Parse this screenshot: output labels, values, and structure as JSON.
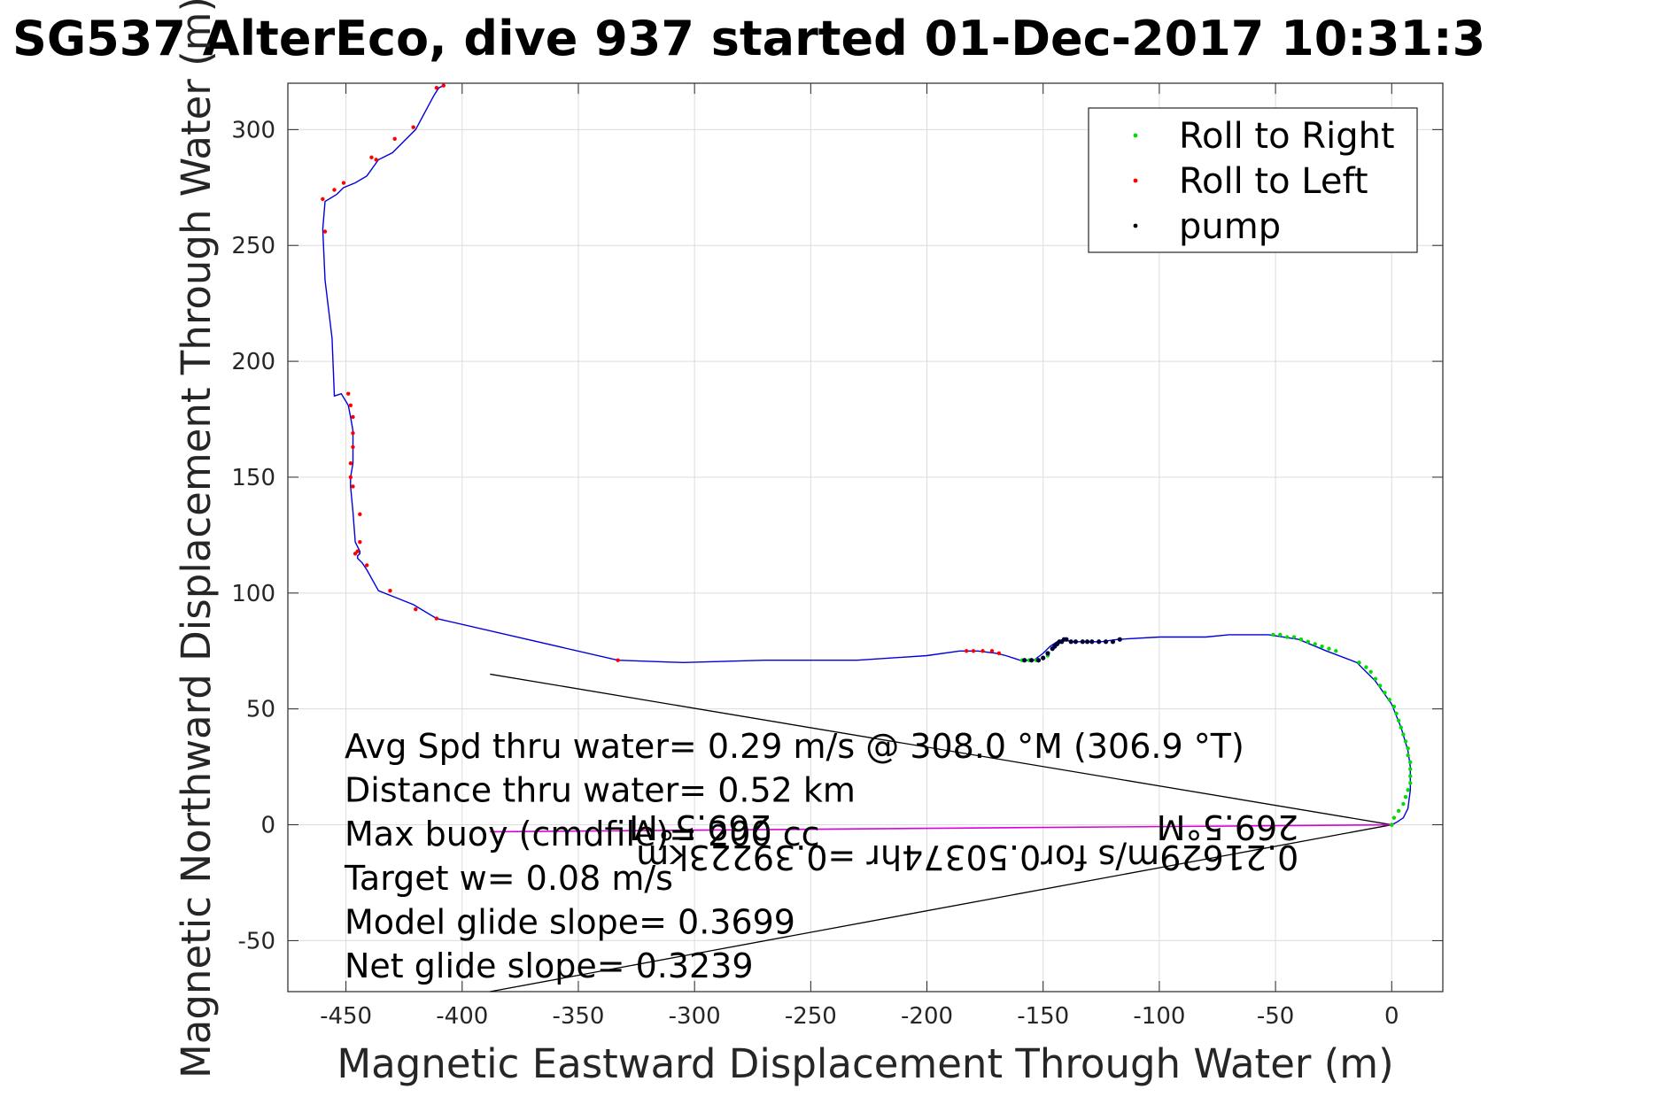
{
  "chart_data": {
    "type": "line",
    "title": "SG537 AlterEco, dive 937 started 01-Dec-2017 10:31:3",
    "xlabel": "Magnetic Eastward Displacement Through Water (m)",
    "ylabel": "Magnetic Northward Displacement Through Water (m)",
    "xlim": [
      -475,
      22
    ],
    "ylim": [
      -72,
      320
    ],
    "xticks": [
      -450,
      -400,
      -350,
      -300,
      -250,
      -200,
      -150,
      -100,
      -50,
      0
    ],
    "yticks": [
      -50,
      0,
      50,
      100,
      150,
      200,
      250,
      300
    ],
    "grid": true,
    "legend_position": "top-right",
    "legend": [
      {
        "label": "Roll to Right",
        "color": "#00dd00"
      },
      {
        "label": "Roll to Left",
        "color": "#ff0000"
      },
      {
        "label": "pump",
        "color": "#000000"
      }
    ],
    "track": {
      "color": "#0000dd",
      "x": [
        -408,
        -410,
        -412,
        -420,
        -425,
        -430,
        -436,
        -441,
        -446,
        -451,
        -454,
        -459,
        -460,
        -459,
        -456,
        -455,
        -452,
        -449,
        -448,
        -447,
        -447,
        -447,
        -448,
        -448,
        -447,
        -446,
        -444,
        -444,
        -445,
        -445,
        -443,
        -441,
        -436,
        -431,
        -421,
        -411,
        -333,
        -305,
        -270,
        -230,
        -200,
        -186,
        -178,
        -170,
        -166,
        -160,
        -154,
        -150,
        -147,
        -144,
        -141,
        -138,
        -133,
        -125,
        -118,
        -100,
        -80,
        -70,
        -53,
        -40,
        -28,
        -15,
        -7,
        0,
        4,
        7,
        8,
        8,
        7,
        5,
        2,
        0
      ],
      "y": [
        319,
        318,
        315,
        300,
        295,
        290,
        287,
        280,
        277,
        275,
        272,
        269,
        257,
        235,
        210,
        185,
        186,
        181,
        176,
        170,
        160,
        156,
        150,
        146,
        135,
        122,
        118,
        117,
        116,
        115,
        113,
        110,
        101,
        99,
        95,
        89,
        71,
        70,
        71,
        71,
        73,
        75,
        75,
        74,
        73,
        71,
        71,
        74,
        77,
        79,
        80,
        79,
        79,
        79,
        80,
        81,
        81,
        82,
        82,
        80,
        75,
        70,
        62,
        52,
        42,
        32,
        25,
        15,
        7,
        3,
        1,
        0
      ]
    },
    "roll_right": {
      "x": [
        -159,
        -156,
        -153,
        -150,
        -148,
        -51,
        -48,
        -45,
        -42,
        -39,
        -36,
        -33,
        -30,
        -27,
        -24,
        -14,
        -11,
        -9,
        -7,
        -5,
        -3,
        -1,
        1,
        2,
        3,
        4,
        5,
        6,
        7,
        7,
        8,
        8,
        8,
        8,
        7,
        6,
        5,
        3,
        1,
        0
      ],
      "y": [
        71,
        71,
        71,
        72,
        73,
        82,
        82,
        81,
        81,
        80,
        79,
        78,
        77,
        76,
        75,
        70,
        68,
        66,
        63,
        60,
        57,
        54,
        51,
        48,
        45,
        42,
        39,
        36,
        33,
        30,
        27,
        24,
        21,
        18,
        15,
        12,
        9,
        6,
        3,
        0
      ]
    },
    "roll_left": {
      "x": [
        -408,
        -411,
        -421,
        -429,
        -437,
        -439,
        -451,
        -455,
        -460,
        -459,
        -449,
        -448,
        -447,
        -447,
        -447,
        -448,
        -448,
        -447,
        -444,
        -444,
        -445,
        -446,
        -441,
        -431,
        -420,
        -411,
        -333,
        -183,
        -180,
        -176,
        -172,
        -169,
        0
      ],
      "y": [
        319,
        318,
        301,
        296,
        287,
        288,
        277,
        274,
        270,
        256,
        186,
        181,
        176,
        169,
        163,
        156,
        150,
        146,
        134,
        122,
        118,
        117,
        112,
        101,
        93,
        89,
        71,
        75,
        75,
        75,
        75,
        74,
        0
      ]
    },
    "pump": {
      "x": [
        -158,
        -155,
        -152,
        -150,
        -148,
        -146,
        -145,
        -144,
        -143,
        -142,
        -141,
        -140,
        -138,
        -136,
        -133,
        -131,
        -129,
        -126,
        -123,
        -120,
        -117
      ],
      "y": [
        71,
        71,
        71,
        72,
        74,
        76,
        77,
        78,
        79,
        79,
        80,
        80,
        79,
        79,
        79,
        79,
        79,
        79,
        79,
        79,
        80
      ]
    },
    "model_lines": [
      {
        "x": [
          0,
          -388
        ],
        "y": [
          0,
          65
        ],
        "color": "#000000"
      },
      {
        "x": [
          0,
          -388
        ],
        "y": [
          0,
          -72
        ],
        "color": "#000000"
      }
    ],
    "current_line": {
      "x": [
        0,
        -388
      ],
      "y": [
        0,
        -3
      ],
      "color": "#dd00dd"
    },
    "stats_text": [
      "Avg Spd thru water=  0.29 m/s @ 308.0 °M (306.9 °T)",
      "Distance thru water=  0.52 km",
      "Max buoy (cmdfile)= 200 cc",
      "Target w= 0.08 m/s",
      "Model glide slope= 0.3699",
      "Net glide slope= 0.3239"
    ],
    "upside_down_annotations": [
      {
        "text": "269.5°M",
        "x": -40,
        "y": 4
      },
      {
        "text": "0.21629m/s for0.50374hr =0.39223km",
        "x": -40,
        "y": -9
      },
      {
        "text": "269.5°M",
        "x": -267,
        "y": 4
      }
    ]
  }
}
